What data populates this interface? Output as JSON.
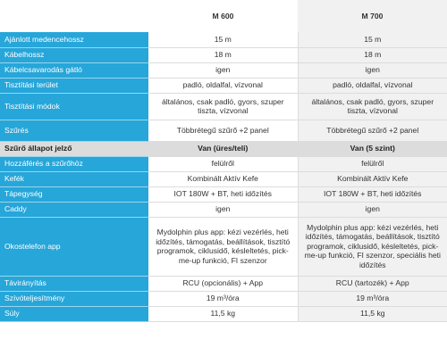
{
  "header": {
    "col1": "",
    "m600": "M 600",
    "m700": "M 700"
  },
  "rows": [
    {
      "label": "Ajánlott medencehossz",
      "m600": "15 m",
      "m700": "15 m"
    },
    {
      "label": "Kábelhossz",
      "m600": "18 m",
      "m700": "18 m"
    },
    {
      "label": "Kábelcsavarodás gátló",
      "m600": "igen",
      "m700": "igen"
    },
    {
      "label": "Tisztítási terület",
      "m600": "padló, oldalfal, vízvonal",
      "m700": "padló, oldalfal, vízvonal"
    },
    {
      "label": "Tisztítási módok",
      "m600": "általános, csak padló, gyors, szuper tiszta, vízvonal",
      "m700": "általános, csak padló, gyors, szuper tiszta, vízvonal"
    },
    {
      "label": "Szűrés",
      "m600": "Többrétegű szűrő +2 panel",
      "m700": "Többrétegű szűrő +2 panel"
    },
    {
      "label": "Szűrő állapot jelző",
      "m600": "Van (üres/teli)",
      "m700": "Van (5 szint)"
    },
    {
      "label": "Hozzáférés a szűrőhöz",
      "m600": "felülről",
      "m700": "felülről"
    },
    {
      "label": "Kefék",
      "m600": "Kombinált Aktív Kefe",
      "m700": "Kombinált Aktív Kefe"
    },
    {
      "label": "Tápegység",
      "m600": "IOT 180W + BT, heti időzítés",
      "m700": "IOT 180W + BT, heti időzítés"
    },
    {
      "label": "Caddy",
      "m600": "igen",
      "m700": "igen"
    },
    {
      "label": "Okostelefon app",
      "m600": "Mydolphin plus app: kézi vezérlés, heti időzítés, támogatás, beállítások, tisztító programok, ciklusidő, késleltetés, pick-me-up funkció, FI szenzor",
      "m700": "Mydolphin plus app: kézi vezérlés, heti időzítés, támogatás, beállítások, tisztító programok, ciklusidő, késleltetés, pick-me-up funkció, FI szenzor, speciális heti időzítés"
    },
    {
      "label": "Távirányítás",
      "m600": "RCU (opcionális) + App",
      "m700": "RCU (tartozék) + App"
    },
    {
      "label": "Szívóteljesítmény",
      "m600": "19 m³/óra",
      "m700": "19 m³/óra"
    },
    {
      "label": "Súly",
      "m600": "11,5 kg",
      "m700": "11,5 kg"
    }
  ]
}
